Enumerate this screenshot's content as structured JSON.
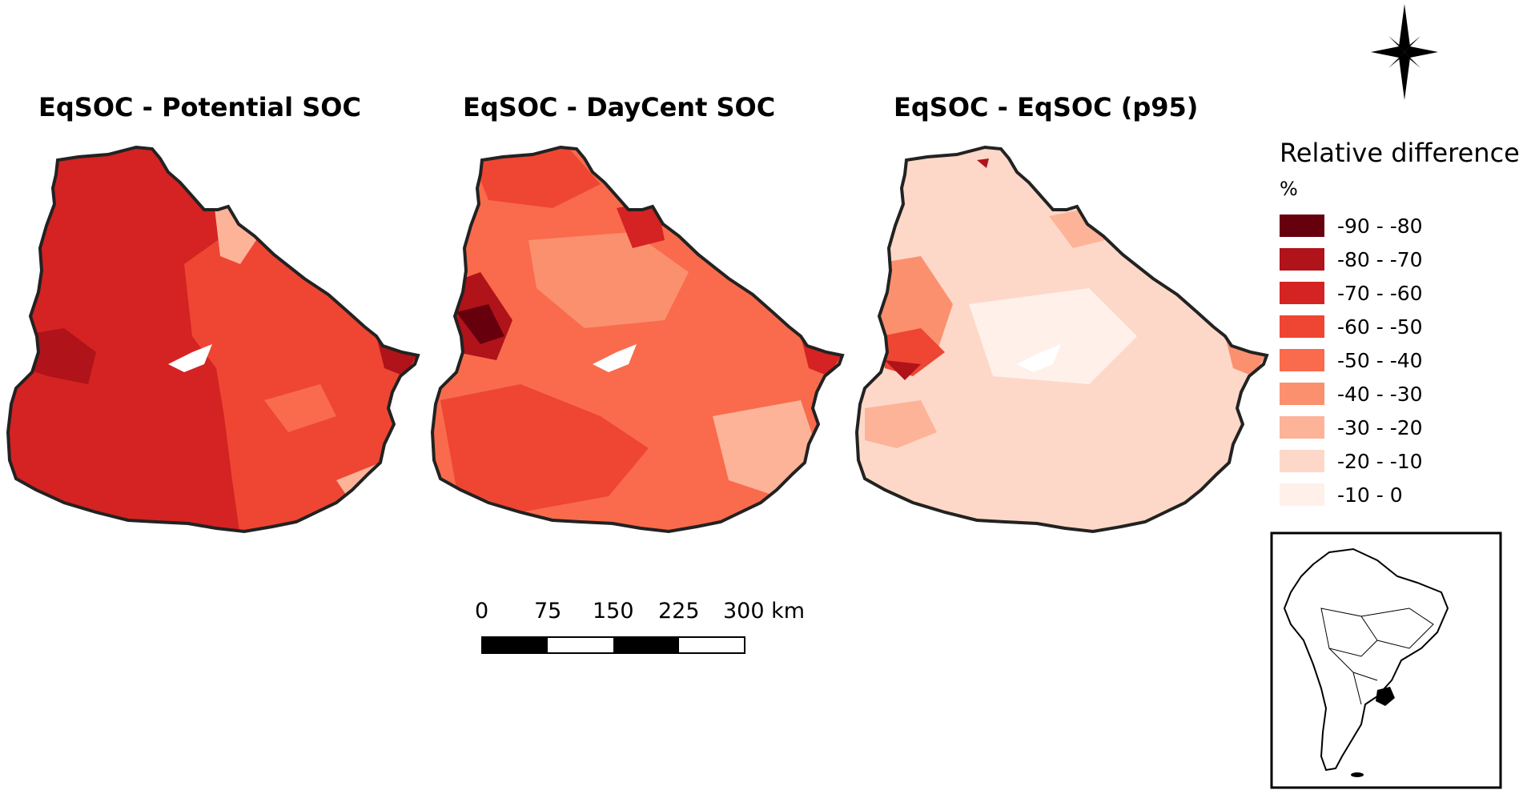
{
  "panels": [
    {
      "title": "EqSOC - Potential SOC"
    },
    {
      "title": "EqSOC - DayCent SOC"
    },
    {
      "title": "EqSOC - EqSOC (p95)"
    }
  ],
  "legend": {
    "title": "Relative difference",
    "unit": "%",
    "classes": [
      {
        "label": "-90 - -80",
        "color": "#67000d"
      },
      {
        "label": "-80 - -70",
        "color": "#b01319"
      },
      {
        "label": "-70 - -60",
        "color": "#d42322"
      },
      {
        "label": "-60 - -50",
        "color": "#ee4633"
      },
      {
        "label": "-50 - -40",
        "color": "#f96b4c"
      },
      {
        "label": "-40 - -30",
        "color": "#fb906f"
      },
      {
        "label": "-30 - -20",
        "color": "#fcb398"
      },
      {
        "label": "-20 - -10",
        "color": "#fdd8c8"
      },
      {
        "label": "-10 - 0",
        "color": "#fff0ea"
      }
    ]
  },
  "scale_bar": {
    "ticks": [
      "0",
      "75",
      "150",
      "225",
      "300 km"
    ]
  },
  "icons": {
    "north_arrow": "compass-star-icon",
    "inset": "south-america-locator-map"
  }
}
